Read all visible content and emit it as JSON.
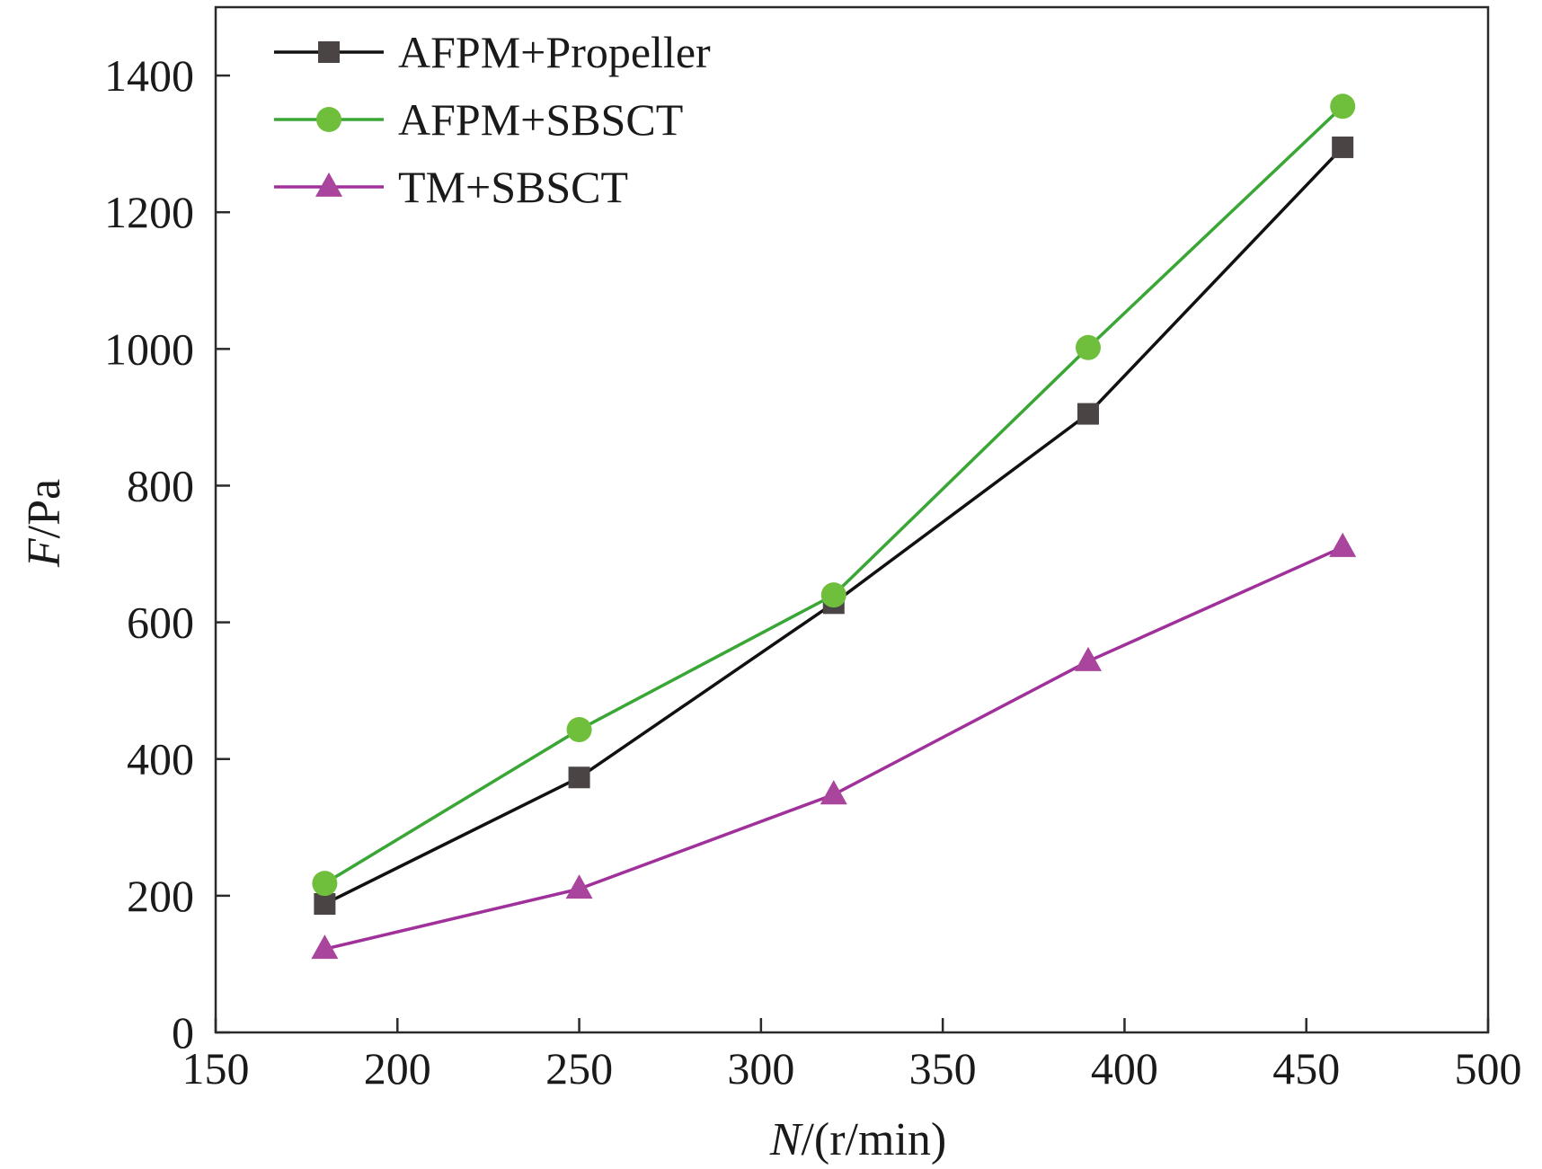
{
  "chart_data": {
    "type": "line",
    "title": "",
    "x": [
      180,
      250,
      320,
      390,
      460
    ],
    "xlim": [
      150,
      500
    ],
    "ylim": [
      0,
      1500
    ],
    "xticks": [
      "150",
      "200",
      "250",
      "300",
      "350",
      "400",
      "450",
      "500"
    ],
    "yticks": [
      "0",
      "200",
      "400",
      "600",
      "800",
      "1000",
      "1200",
      "1400"
    ],
    "xlabel": {
      "var": "N",
      "unit": "/(r/min)"
    },
    "ylabel": {
      "var": "F",
      "unit": "/Pa"
    },
    "grid": false,
    "legend_position": "top-left",
    "series": [
      {
        "name": "AFPM+Propeller",
        "marker": "square",
        "color": "#111111",
        "marker_color": "#4a4445",
        "values": [
          188,
          373,
          628,
          905,
          1295
        ]
      },
      {
        "name": "AFPM+SBSCT",
        "marker": "circle",
        "color": "#3aa635",
        "marker_color": "#6fbf3d",
        "values": [
          218,
          443,
          640,
          1002,
          1355
        ]
      },
      {
        "name": "TM+SBSCT",
        "marker": "triangle",
        "color": "#a0309a",
        "marker_color": "#a9459d",
        "values": [
          122,
          210,
          348,
          543,
          710
        ]
      }
    ]
  }
}
